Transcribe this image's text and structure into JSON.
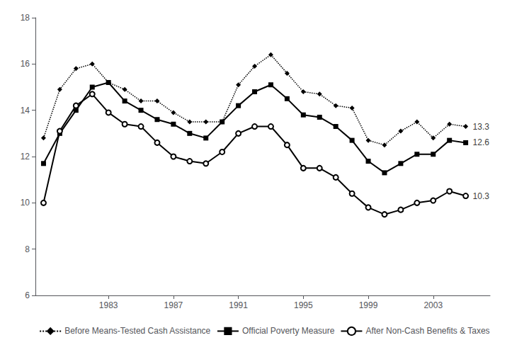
{
  "chart_data": {
    "type": "line",
    "x": [
      1979,
      1980,
      1981,
      1982,
      1983,
      1984,
      1985,
      1986,
      1987,
      1988,
      1989,
      1990,
      1991,
      1992,
      1993,
      1994,
      1995,
      1996,
      1997,
      1998,
      1999,
      2000,
      2001,
      2002,
      2003,
      2004,
      2005
    ],
    "series": [
      {
        "name": "Before Means-Tested Cash Assistance",
        "color": "#000000",
        "marker": "diamond",
        "line_style": "dotted",
        "values": [
          12.8,
          14.9,
          15.8,
          16.0,
          15.2,
          14.9,
          14.4,
          14.4,
          13.9,
          13.5,
          13.5,
          13.5,
          15.1,
          15.9,
          16.4,
          15.6,
          14.8,
          14.7,
          14.2,
          14.1,
          12.7,
          12.5,
          13.1,
          13.5,
          12.8,
          13.4,
          13.3
        ]
      },
      {
        "name": "Official Poverty Measure",
        "color": "#000000",
        "marker": "square",
        "line_style": "solid",
        "values": [
          11.7,
          13.0,
          14.0,
          15.0,
          15.2,
          14.4,
          14.0,
          13.6,
          13.4,
          13.0,
          12.8,
          13.5,
          14.2,
          14.8,
          15.1,
          14.5,
          13.8,
          13.7,
          13.3,
          12.7,
          11.8,
          11.3,
          11.7,
          12.1,
          12.1,
          12.7,
          12.6
        ]
      },
      {
        "name": "After Non-Cash Benefits & Taxes",
        "color": "#000000",
        "marker": "open_circle",
        "line_style": "solid",
        "values": [
          10.0,
          13.1,
          14.2,
          14.7,
          13.9,
          13.4,
          13.3,
          12.6,
          12.0,
          11.8,
          11.7,
          12.2,
          13.0,
          13.3,
          13.3,
          12.5,
          11.5,
          11.5,
          11.1,
          10.4,
          9.8,
          9.5,
          9.7,
          10.0,
          10.1,
          10.5,
          10.3
        ]
      }
    ],
    "annotations": [
      {
        "text": "13.3",
        "x": 2005,
        "y": 13.3
      },
      {
        "text": "12.6",
        "x": 2005,
        "y": 12.6
      },
      {
        "text": "10.3",
        "x": 2005,
        "y": 10.3
      }
    ],
    "xlim": [
      1978.5,
      2006.5
    ],
    "xticks": [
      1983,
      1987,
      1991,
      1995,
      1999,
      2003
    ],
    "ylim": [
      6,
      18
    ],
    "yticks": [
      6,
      8,
      10,
      12,
      14,
      16,
      18
    ],
    "grid": false,
    "legend": "bottom"
  }
}
